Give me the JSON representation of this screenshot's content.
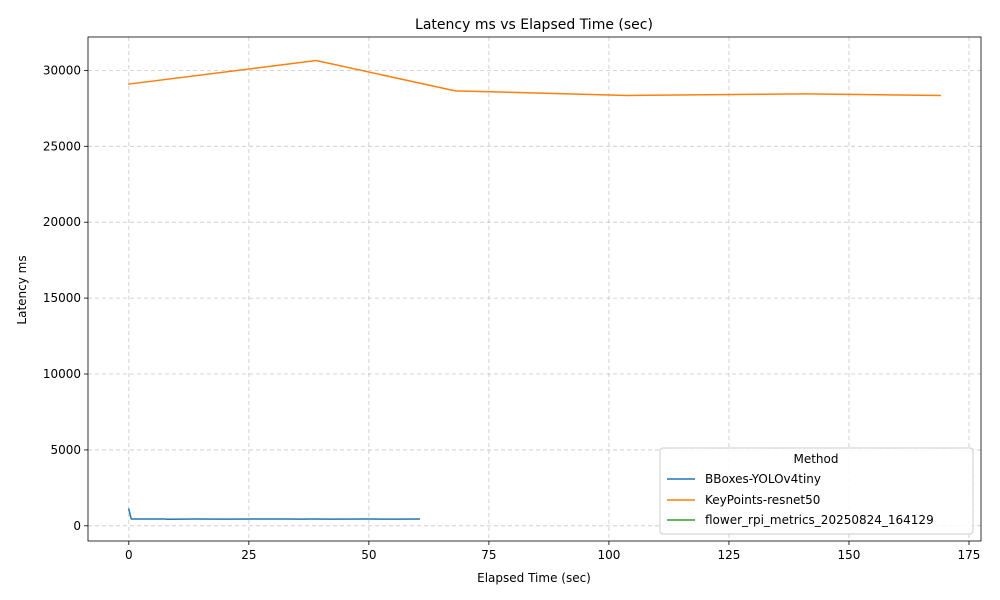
{
  "chart_data": {
    "type": "line",
    "title": "Latency ms vs Elapsed Time (sec)",
    "xlabel": "Elapsed Time (sec)",
    "ylabel": "Latency ms",
    "xlim": [
      -8.5,
      177.5
    ],
    "ylim": [
      -1000,
      32200
    ],
    "xticks": [
      0,
      25,
      50,
      75,
      100,
      125,
      150,
      175
    ],
    "yticks": [
      0,
      5000,
      10000,
      15000,
      20000,
      25000,
      30000
    ],
    "grid": true,
    "legend": {
      "title": "Method",
      "position": "lower-right"
    },
    "series": [
      {
        "name": "BBoxes-YOLOv4tiny",
        "color": "#1f77b4",
        "x": [
          0,
          0.5,
          7.5,
          8,
          14,
          20,
          26,
          33,
          36,
          38,
          42,
          50,
          56,
          60.5
        ],
        "y": [
          1100,
          450,
          450,
          430,
          450,
          440,
          445,
          450,
          440,
          445,
          440,
          445,
          440,
          450
        ]
      },
      {
        "name": "KeyPoints-resnet50",
        "color": "#ff7f0e",
        "x": [
          0,
          39,
          68,
          104,
          141,
          169
        ],
        "y": [
          29100,
          30650,
          28650,
          28350,
          28450,
          28350
        ]
      },
      {
        "name": "flower_rpi_metrics_20250824_164129",
        "color": "#2ca02c",
        "x": [],
        "y": []
      }
    ]
  }
}
